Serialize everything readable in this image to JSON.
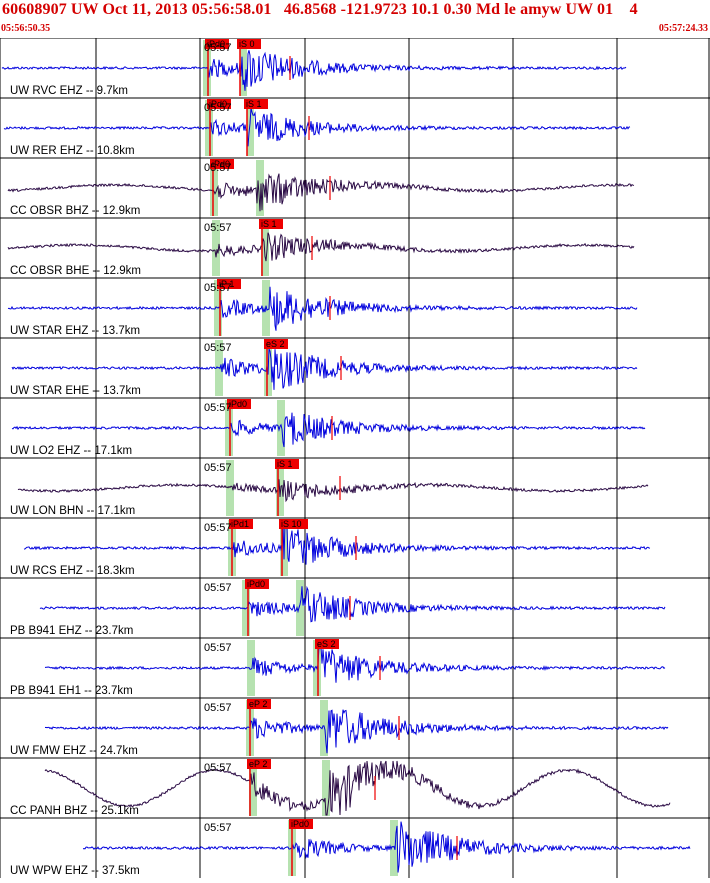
{
  "header": {
    "title": "60608907 UW Oct 11, 2013 05:56:58.01   46.8568 -121.9723 10.1 0.30 Md le amyw UW 01    4",
    "start_time": "05:56:50.35",
    "end_time": "05:57:24.33"
  },
  "colors": {
    "header_text": "#d40000",
    "trace_blue": "#0000dd",
    "trace_dark": "#2a0a44",
    "pick_red": "#ee0000",
    "window_green": "#b6e2b0",
    "grid": "#000000"
  },
  "traces": [
    {
      "label": "UW RVC EHZ -- 9.7km",
      "time_label": "05:57",
      "color": "blue",
      "picks": [
        "iPd0",
        "iS 0"
      ]
    },
    {
      "label": "UW RER EHZ -- 10.8km",
      "time_label": "05:57",
      "color": "blue",
      "picks": [
        "iPd0",
        "iS 1"
      ]
    },
    {
      "label": "CC OBSR BHZ -- 12.9km",
      "time_label": "05:57",
      "color": "dark",
      "picks": [
        "iPd0"
      ]
    },
    {
      "label": "CC OBSR BHE -- 12.9km",
      "time_label": "05:57",
      "color": "dark",
      "picks": [
        "iS 1"
      ]
    },
    {
      "label": "UW STAR EHZ -- 13.7km",
      "time_label": "05:57",
      "color": "blue",
      "picks": [
        "iP 1"
      ]
    },
    {
      "label": "UW STAR EHE -- 13.7km",
      "time_label": "05:57",
      "color": "blue",
      "picks": [
        "eS 2"
      ]
    },
    {
      "label": "UW LO2 EHZ -- 17.1km",
      "time_label": "05:57",
      "color": "blue",
      "picks": [
        "iPd0"
      ]
    },
    {
      "label": "UW LON BHN -- 17.1km",
      "time_label": "05:57",
      "color": "dark",
      "picks": [
        "iS 1"
      ]
    },
    {
      "label": "UW RCS EHZ -- 18.3km",
      "time_label": "05:57",
      "color": "blue",
      "picks": [
        "iPd1",
        "iS 10"
      ]
    },
    {
      "label": "PB B941 EHZ -- 23.7km",
      "time_label": "05:57",
      "color": "blue",
      "picks": [
        "iPd0"
      ]
    },
    {
      "label": "PB B941 EH1 -- 23.7km",
      "time_label": "05:57",
      "color": "blue",
      "picks": [
        "eS 2"
      ]
    },
    {
      "label": "UW FMW EHZ -- 24.7km",
      "time_label": "05:57",
      "color": "blue",
      "picks": [
        "eP 2"
      ]
    },
    {
      "label": "CC PANH BHZ -- 25.1km",
      "time_label": "05:57",
      "color": "dark",
      "picks": [
        "eP 2"
      ]
    },
    {
      "label": "UW WPW EHZ -- 37.5km",
      "time_label": "05:57",
      "color": "blue",
      "picks": [
        "iPd0"
      ]
    }
  ]
}
